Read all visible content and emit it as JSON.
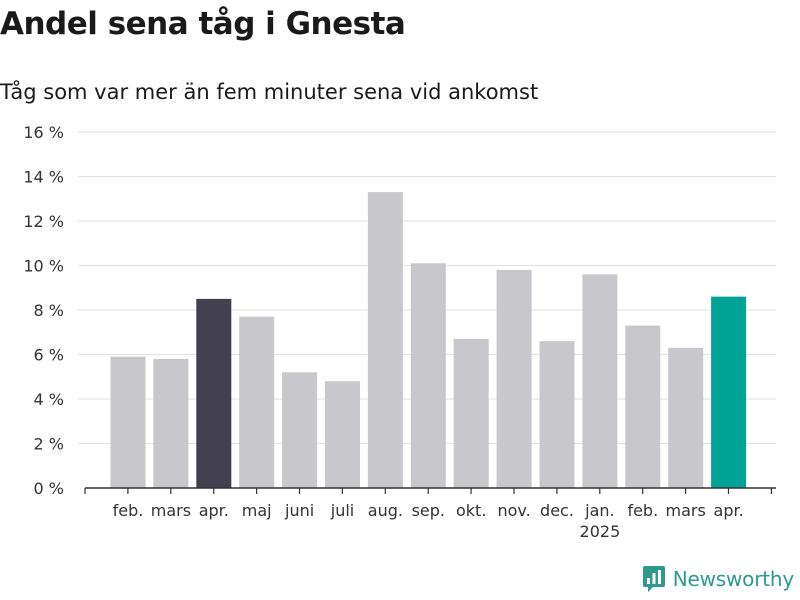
{
  "header": {
    "title": "Andel sena tåg i Gnesta",
    "subtitle": "Tåg som var mer än fem minuter sena vid ankomst"
  },
  "brand": {
    "name": "Newsworthy",
    "icon": "newsworthy-logo-icon"
  },
  "colors": {
    "default": "#c8c7cc",
    "highlight_dark": "#43404f",
    "highlight_accent": "#00a396",
    "grid": "#e2e2e2",
    "axis": "#333333"
  },
  "chart_data": {
    "type": "bar",
    "title": "Andel sena tåg i Gnesta",
    "subtitle": "Tåg som var mer än fem minuter sena vid ankomst",
    "xlabel": "",
    "ylabel": "",
    "ylim": [
      0,
      16
    ],
    "yticks": [
      0,
      2,
      4,
      6,
      8,
      10,
      12,
      14,
      16
    ],
    "ytick_labels": [
      "0 %",
      "2 %",
      "4 %",
      "6 %",
      "8 %",
      "10 %",
      "12 %",
      "14 %",
      "16 %"
    ],
    "grid": true,
    "categories": [
      "feb.",
      "mars",
      "apr.",
      "maj",
      "juni",
      "juli",
      "aug.",
      "sep.",
      "okt.",
      "nov.",
      "dec.",
      "jan.",
      "feb.",
      "mars",
      "apr."
    ],
    "year_labels": [
      {
        "index": 11,
        "label": "2025"
      }
    ],
    "values": [
      5.9,
      5.8,
      8.5,
      7.7,
      5.2,
      4.8,
      13.3,
      10.1,
      6.7,
      9.8,
      6.6,
      9.6,
      7.3,
      6.3,
      8.6
    ],
    "bar_colors": [
      "#c8c7cc",
      "#c8c7cc",
      "#43404f",
      "#c8c7cc",
      "#c8c7cc",
      "#c8c7cc",
      "#c8c7cc",
      "#c8c7cc",
      "#c8c7cc",
      "#c8c7cc",
      "#c8c7cc",
      "#c8c7cc",
      "#c8c7cc",
      "#c8c7cc",
      "#00a396"
    ]
  }
}
